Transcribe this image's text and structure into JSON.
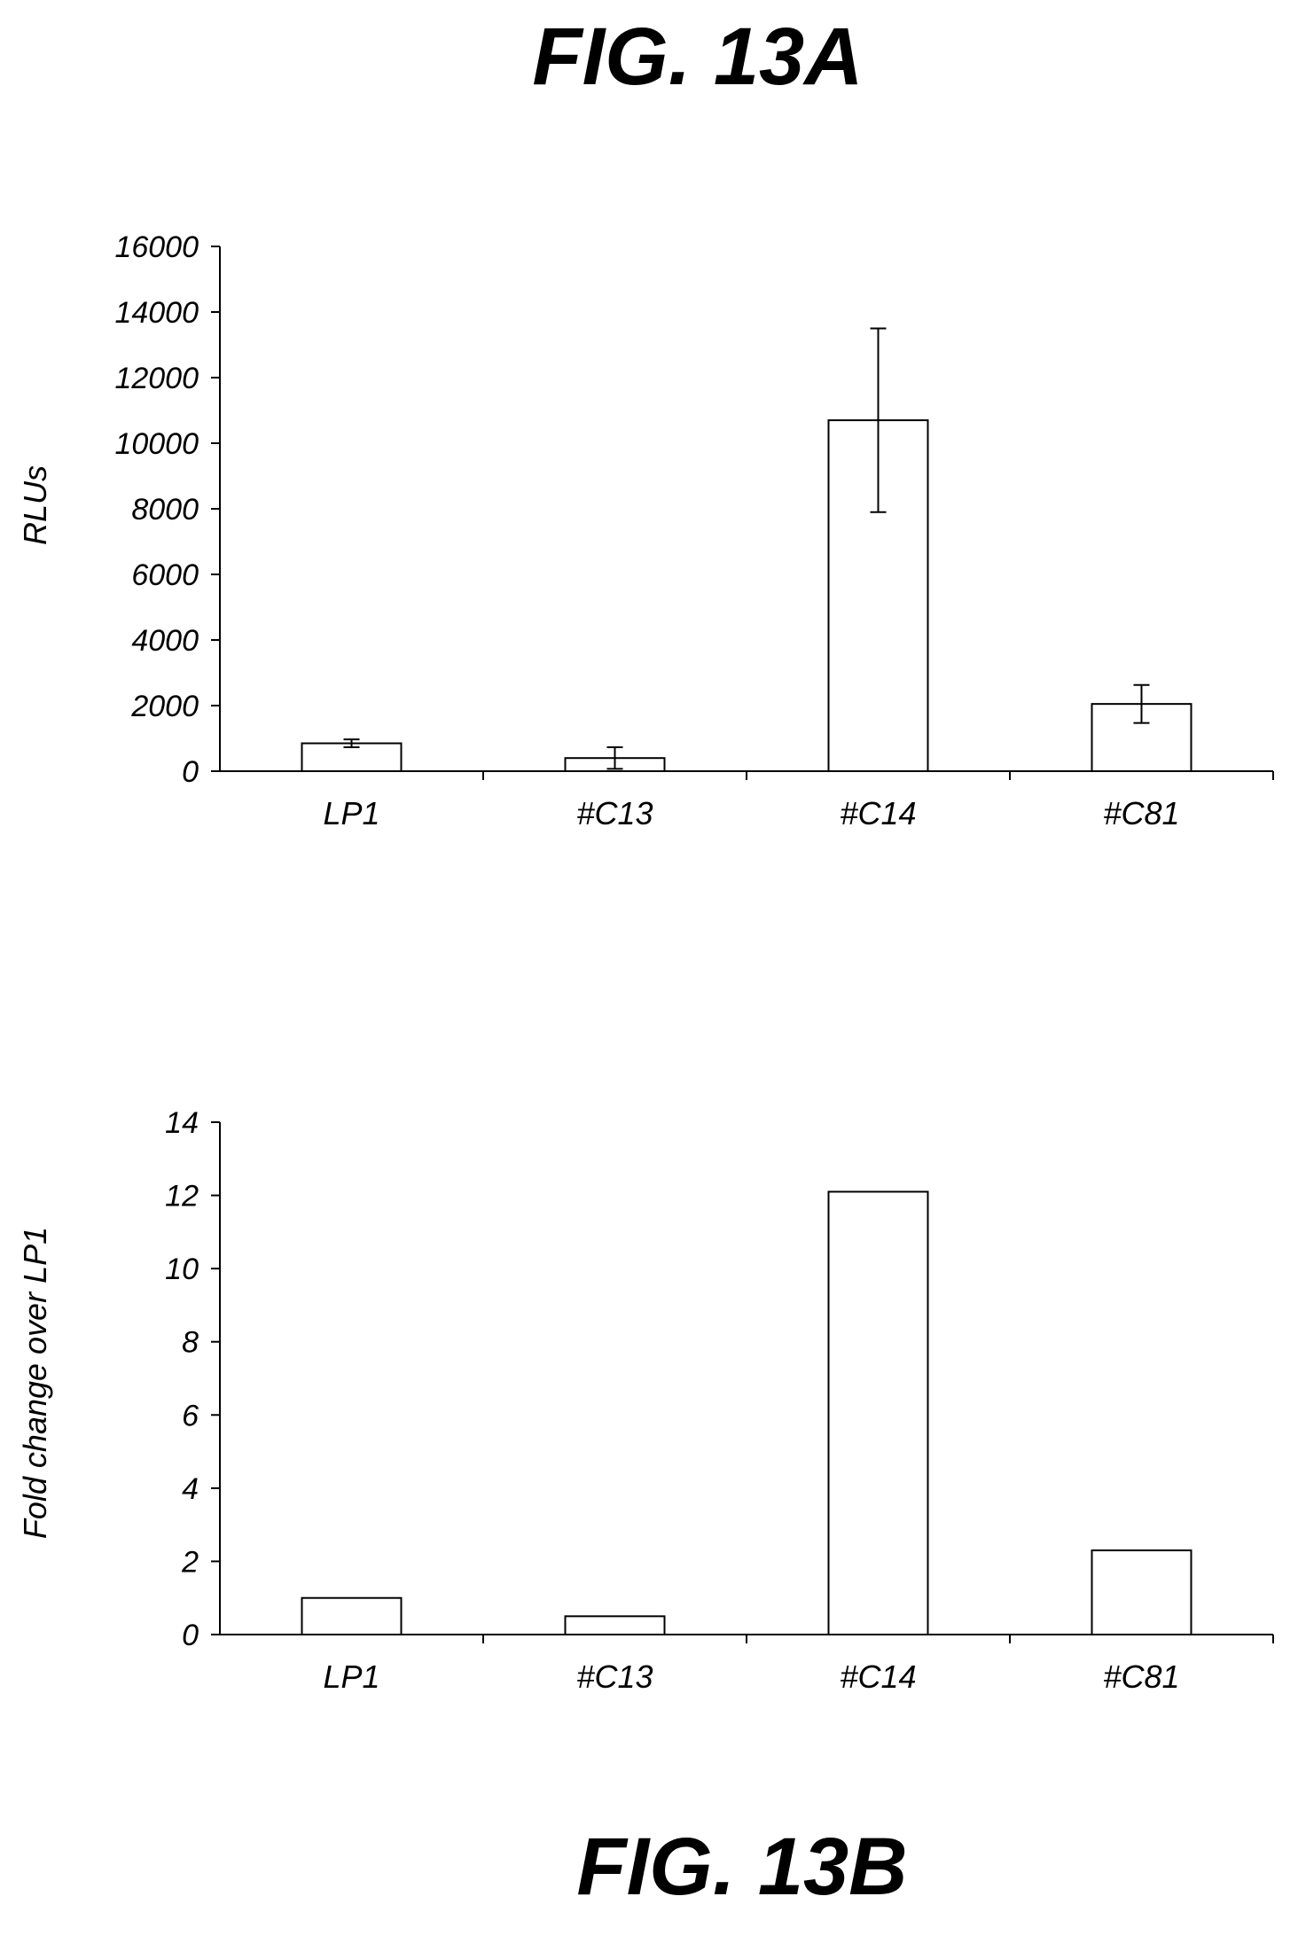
{
  "figures": {
    "a_title": "FIG. 13A",
    "b_title": "FIG. 13B"
  },
  "chart_data": [
    {
      "type": "bar",
      "title": "FIG. 13A",
      "categories": [
        "LP1",
        "#C13",
        "#C14",
        "#C81"
      ],
      "values": [
        850,
        400,
        10700,
        2050
      ],
      "error": [
        120,
        330,
        2800,
        580
      ],
      "ylabel": "RLUs",
      "xlabel": "",
      "ylim": [
        0,
        16000
      ],
      "yticks": [
        0,
        2000,
        4000,
        6000,
        8000,
        10000,
        12000,
        14000,
        16000
      ],
      "grid": false,
      "error_bars": true
    },
    {
      "type": "bar",
      "title": "FIG. 13B",
      "categories": [
        "LP1",
        "#C13",
        "#C14",
        "#C81"
      ],
      "values": [
        1.0,
        0.5,
        12.1,
        2.3
      ],
      "ylabel": "Fold change over LP1",
      "xlabel": "",
      "ylim": [
        0,
        14
      ],
      "yticks": [
        0,
        2,
        4,
        6,
        8,
        10,
        12,
        14
      ],
      "grid": false,
      "error_bars": false
    }
  ]
}
